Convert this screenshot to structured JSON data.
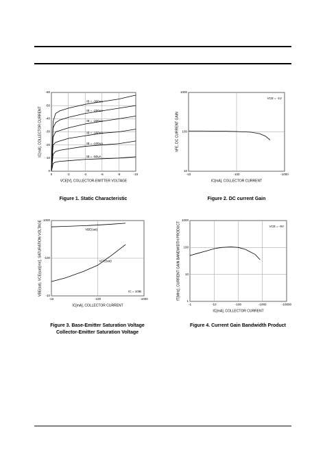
{
  "chart_data": [
    {
      "type": "line",
      "title": "Figure 1. Static Characteristic",
      "x_label": "VCE[V], COLLECTOR-EMITTER VOLTAGE",
      "y_label": "IC[mA], COLLECTOR CURRENT",
      "log_scale": false,
      "grid": true,
      "x": [
        0,
        -0.2,
        -0.5,
        -1,
        -2,
        -4,
        -6,
        -8,
        -10
      ],
      "xlim": [
        0,
        -10
      ],
      "xticks": [
        0,
        -2,
        -4,
        -6,
        -8,
        -10
      ],
      "ylim": [
        0,
        -60
      ],
      "yticks": [
        0,
        -10,
        -20,
        -30,
        -40,
        -50,
        -60
      ],
      "series": [
        {
          "name": "IB = -300uA",
          "color": "#000000",
          "values": [
            0,
            -38,
            -44,
            -46,
            -48,
            -51,
            -53,
            -55,
            -58
          ]
        },
        {
          "name": "IB = -250uA",
          "color": "#000000",
          "values": [
            0,
            -33,
            -37,
            -39,
            -41,
            -44,
            -46,
            -48,
            -50
          ]
        },
        {
          "name": "IB = -200uA",
          "color": "#000000",
          "values": [
            0,
            -26,
            -30,
            -31,
            -33,
            -36,
            -38,
            -40,
            -42
          ]
        },
        {
          "name": "IB = -150uA",
          "color": "#000000",
          "values": [
            0,
            -20,
            -22,
            -23,
            -25,
            -27,
            -29,
            -30,
            -32
          ]
        },
        {
          "name": "IB = -100uA",
          "color": "#000000",
          "values": [
            0,
            -13,
            -15,
            -16,
            -17,
            -19,
            -20,
            -21,
            -23
          ]
        },
        {
          "name": "IB = -50uA",
          "color": "#000000",
          "values": [
            0,
            -6,
            -7,
            -7.5,
            -8,
            -9,
            -9.5,
            -10,
            -11
          ]
        }
      ]
    },
    {
      "type": "line",
      "title": "Figure 2. DC current Gain",
      "x_label": "IC[mA], COLLECTOR CURRENT",
      "y_label": "hFE, DC CURRENT GAIN",
      "annotations": [
        "VCE = -1V"
      ],
      "log_scale": true,
      "grid": true,
      "x": [
        -10,
        -20,
        -50,
        -100,
        -200,
        -300,
        -400,
        -500
      ],
      "xlim": [
        -10,
        -1000
      ],
      "xticks": [
        -10,
        -100,
        -1000
      ],
      "ylim": [
        10,
        1000
      ],
      "yticks": [
        10,
        100,
        1000
      ],
      "series": [
        {
          "color": "#000000",
          "values": [
            105,
            105,
            104,
            102,
            98,
            90,
            78,
            62
          ]
        }
      ]
    },
    {
      "type": "line",
      "title": "Figure 3. Base-Emitter Saturation Voltage",
      "subtitle": "Collector-Emitter Saturation Voltage",
      "x_label": "IC[mA], COLLECTOR CURRENT",
      "y_label": "VBE(sat), VCE(sat)[mV], SATURATION VOLTAGE",
      "annotations": [
        "IC = 10IB"
      ],
      "log_scale": true,
      "grid": true,
      "x": [
        -10,
        -20,
        -50,
        -100,
        -200,
        -400
      ],
      "xlim": [
        -10,
        -1000
      ],
      "xticks": [
        -10,
        -100,
        -1000
      ],
      "ylim": [
        -10,
        -1000
      ],
      "yticks": [
        -10,
        -100,
        -1000
      ],
      "series": [
        {
          "name": "VBE(sat)",
          "color": "#000000",
          "values": [
            -680,
            -700,
            -730,
            -760,
            -800,
            -850
          ]
        },
        {
          "name": "VCE(sat)",
          "color": "#000000",
          "values": [
            -24,
            -30,
            -45,
            -65,
            -120,
            -230
          ]
        }
      ]
    },
    {
      "type": "line",
      "title": "Figure 4. Current Gain Bandwidth Product",
      "x_label": "IC[mA], COLLECTOR CURRENT",
      "y_label": "fT[MHz], CURRENT GAIN BANDWIDTH PRODUCT",
      "annotations": [
        "VCE = -6V"
      ],
      "log_scale": true,
      "grid": true,
      "x": [
        -1,
        -2,
        -5,
        -10,
        -20,
        -50,
        -100,
        -200,
        -500,
        -800
      ],
      "xlim": [
        -1,
        -10000
      ],
      "xticks": [
        -1,
        -10,
        -100,
        -1000,
        -10000
      ],
      "ylim": [
        1,
        1000
      ],
      "yticks": [
        1,
        10,
        100,
        1000
      ],
      "series": [
        {
          "color": "#000000",
          "values": [
            50,
            60,
            75,
            90,
            100,
            105,
            100,
            85,
            55,
            35
          ]
        }
      ]
    }
  ]
}
